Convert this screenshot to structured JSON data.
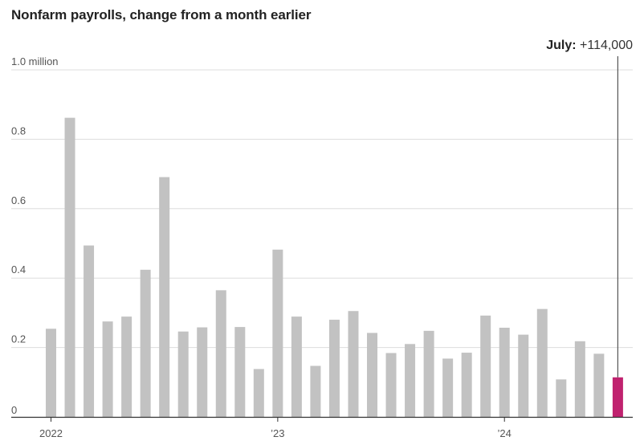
{
  "chart_data": {
    "type": "bar",
    "title": "Nonfarm payrolls, change from a month earlier",
    "y_unit_label": "1.0 million",
    "ylim": [
      0,
      1.0
    ],
    "y_ticks": [
      {
        "value": 0,
        "label": "0"
      },
      {
        "value": 0.2,
        "label": "0.2"
      },
      {
        "value": 0.4,
        "label": "0.4"
      },
      {
        "value": 0.6,
        "label": "0.6"
      },
      {
        "value": 0.8,
        "label": "0.8"
      },
      {
        "value": 1.0,
        "label": "1.0 million"
      }
    ],
    "x_ticks": [
      {
        "index": 0,
        "label": "2022"
      },
      {
        "index": 12,
        "label": "’23"
      },
      {
        "index": 24,
        "label": "’24"
      }
    ],
    "grid": true,
    "categories": [
      "Jan 2022",
      "Feb 2022",
      "Mar 2022",
      "Apr 2022",
      "May 2022",
      "Jun 2022",
      "Jul 2022",
      "Aug 2022",
      "Sep 2022",
      "Oct 2022",
      "Nov 2022",
      "Dec 2022",
      "Jan 2023",
      "Feb 2023",
      "Mar 2023",
      "Apr 2023",
      "May 2023",
      "Jun 2023",
      "Jul 2023",
      "Aug 2023",
      "Sep 2023",
      "Oct 2023",
      "Nov 2023",
      "Dec 2023",
      "Jan 2024",
      "Feb 2024",
      "Mar 2024",
      "Apr 2024",
      "May 2024",
      "Jun 2024",
      "Jul 2024"
    ],
    "values": [
      0.254,
      0.862,
      0.494,
      0.275,
      0.289,
      0.424,
      0.691,
      0.246,
      0.258,
      0.365,
      0.259,
      0.138,
      0.482,
      0.289,
      0.147,
      0.28,
      0.305,
      0.242,
      0.184,
      0.21,
      0.248,
      0.168,
      0.185,
      0.292,
      0.257,
      0.237,
      0.311,
      0.108,
      0.218,
      0.182,
      0.114
    ],
    "highlight_index": 30,
    "colors": {
      "bar": "#c2c2c2",
      "highlight": "#c0226f",
      "grid": "#dddddd",
      "axis": "#333333",
      "annotation_line": "#555555"
    },
    "annotation": {
      "label": "July:",
      "value": "+114,000"
    }
  }
}
